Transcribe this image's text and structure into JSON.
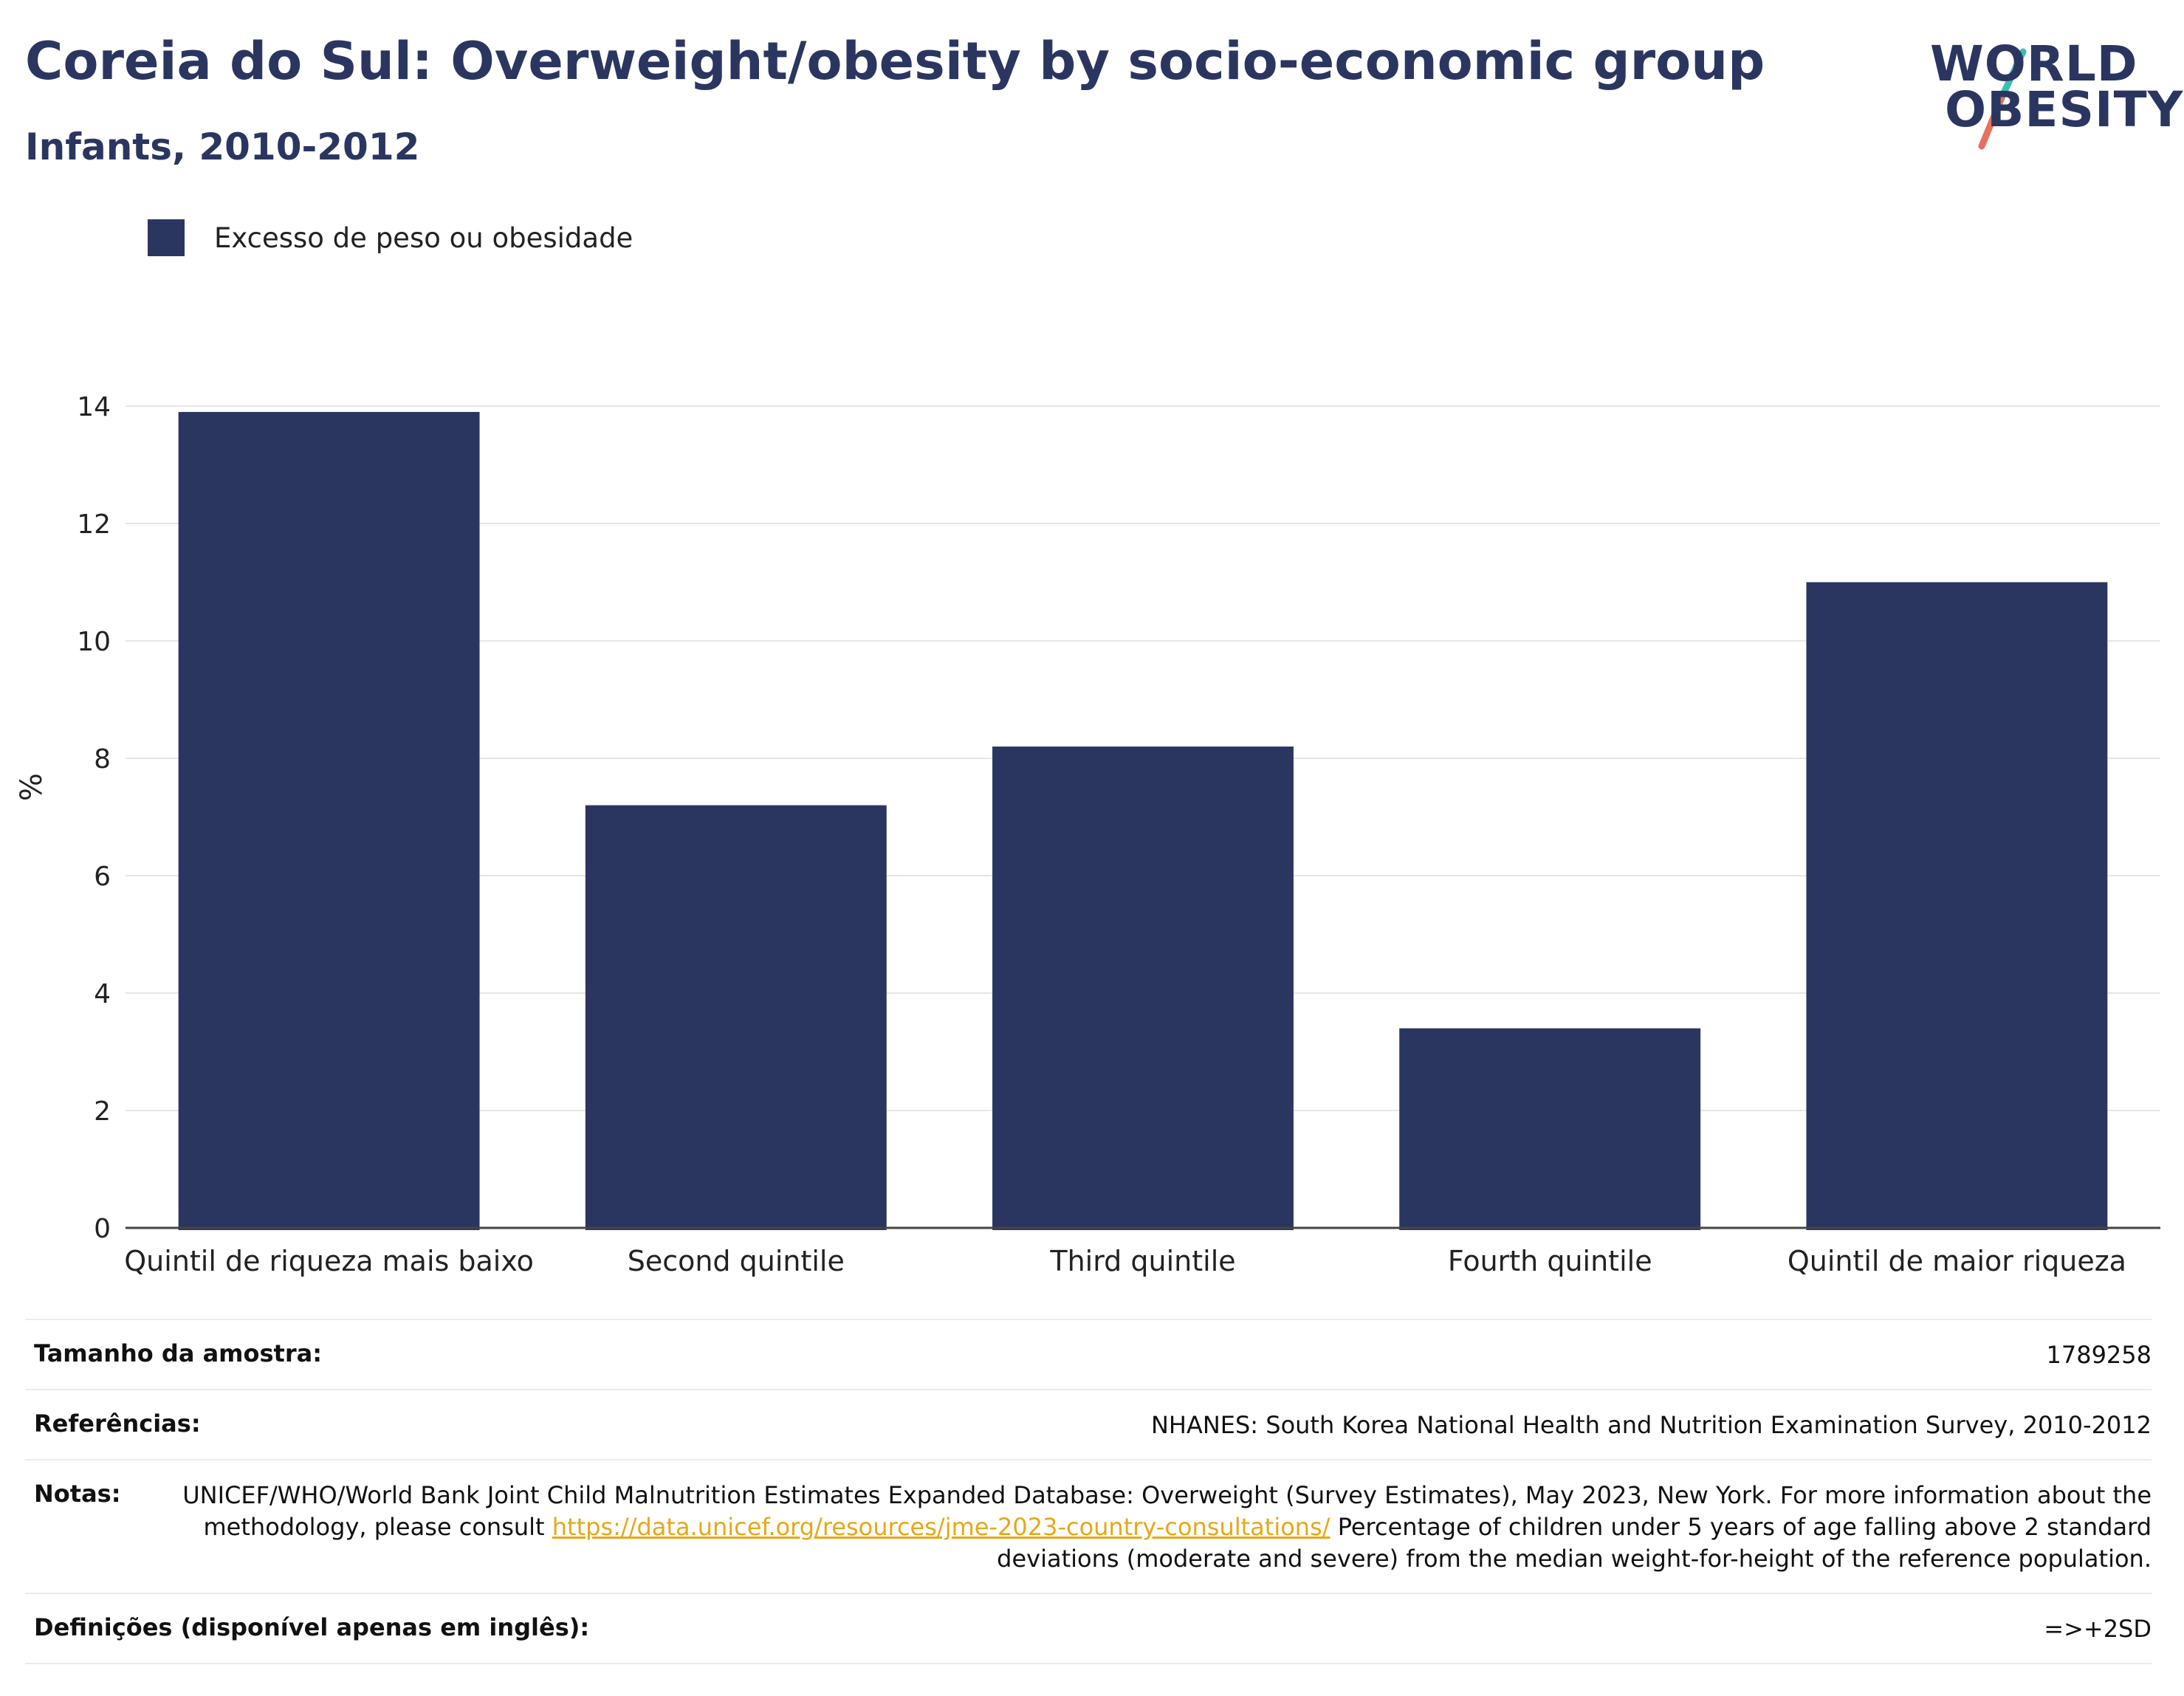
{
  "header": {
    "title": "Coreia do Sul: Overweight/obesity by socio-economic group",
    "subtitle": "Infants, 2010-2012"
  },
  "logo": {
    "line1": "WORLD",
    "line2": "OBESITY",
    "colors": {
      "text": "#2b3660",
      "slash_top": "#3bbfb2",
      "slash_bottom": "#e8705e"
    }
  },
  "colors": {
    "bar": "#2b3660",
    "grid": "#e6e6e6",
    "axis": "#444444",
    "link": "#e6a817"
  },
  "chart_data": {
    "type": "bar",
    "categories": [
      "Quintil de riqueza mais baixo",
      "Second quintile",
      "Third quintile",
      "Fourth quintile",
      "Quintil de maior riqueza"
    ],
    "series": [
      {
        "name": "Excesso de peso ou obesidade",
        "values": [
          13.9,
          7.2,
          8.2,
          3.4,
          11.0
        ]
      }
    ],
    "ylabel": "%",
    "ylim": [
      0,
      14
    ],
    "yticks": [
      0,
      2,
      4,
      6,
      8,
      10,
      12,
      14
    ],
    "grid": true,
    "legend_position": "top-left"
  },
  "info": {
    "sample_size": {
      "label": "Tamanho da amostra:",
      "value": "1789258"
    },
    "references": {
      "label": "Referências:",
      "value": "NHANES: South Korea National Health and Nutrition Examination Survey, 2010-2012"
    },
    "notes": {
      "label": "Notas:",
      "text_before": "UNICEF/WHO/World Bank Joint Child Malnutrition Estimates Expanded Database: Overweight (Survey Estimates), May 2023, New York. For more information about the methodology, please consult ",
      "link": "https://data.unicef.org/resources/jme-2023-country-consultations/",
      "text_after": " Percentage of children under 5 years of age falling above 2 standard deviations (moderate and severe) from the median weight-for-height of the reference population."
    },
    "definitions": {
      "label": "Definições (disponível apenas em inglês):",
      "value": "=>+2SD"
    }
  }
}
